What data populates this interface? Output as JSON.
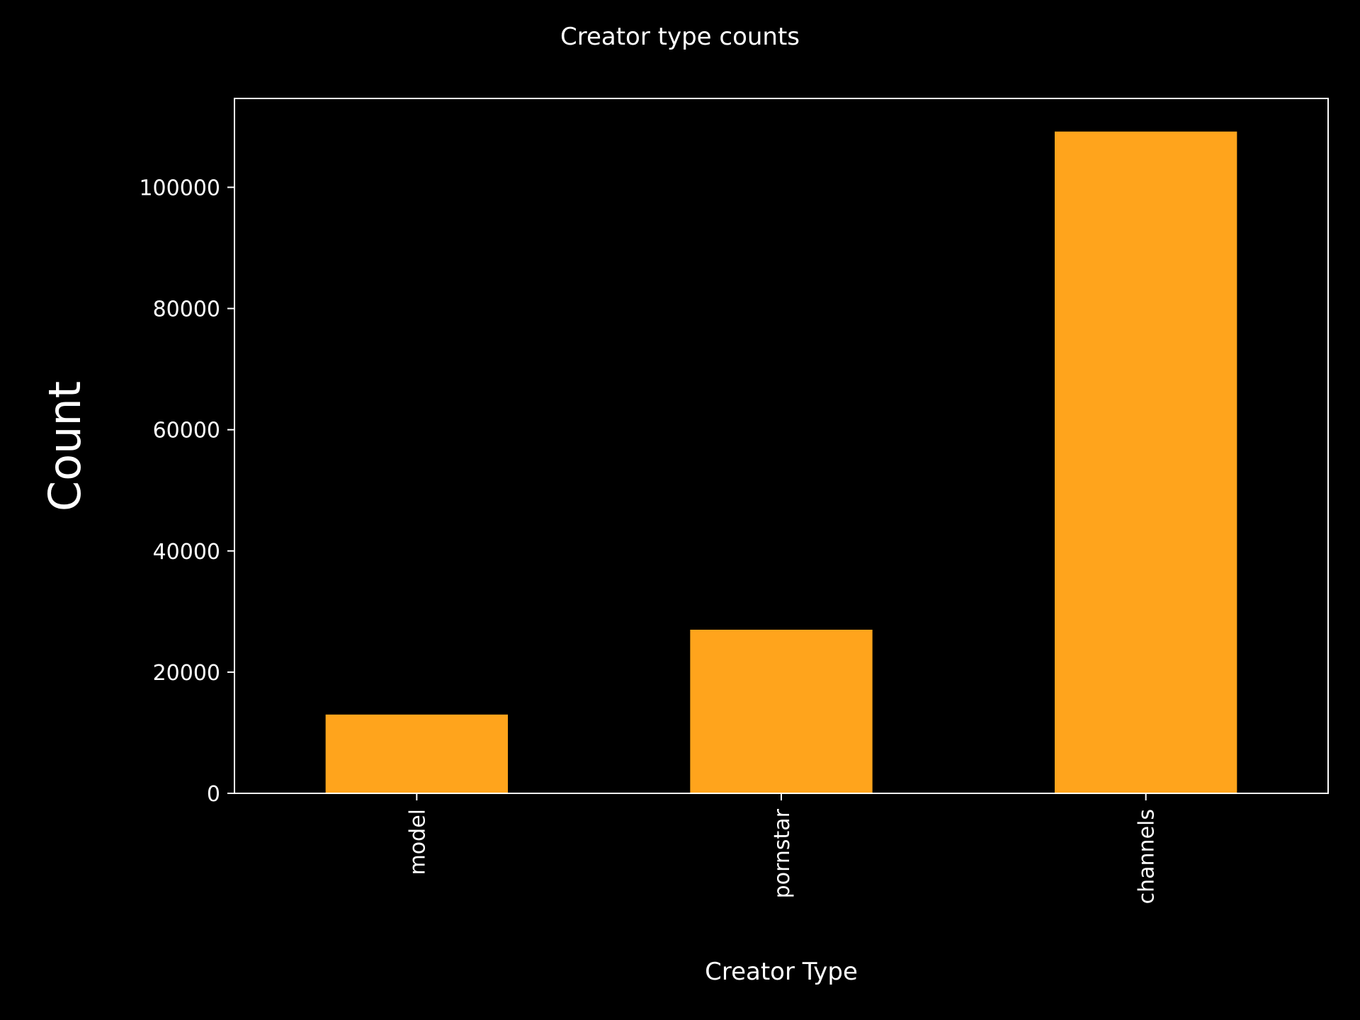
{
  "chart_data": {
    "type": "bar",
    "title": "Creator type counts",
    "xlabel": "Creator Type",
    "ylabel": "Count",
    "categories": [
      "model",
      "pornstar",
      "channels"
    ],
    "values": [
      13000,
      27000,
      109200
    ],
    "ylim": [
      0,
      114660
    ],
    "yticks": [
      0,
      20000,
      40000,
      60000,
      80000,
      100000
    ],
    "ytick_labels": [
      "0",
      "20000",
      "40000",
      "60000",
      "80000",
      "100000"
    ],
    "grid": false,
    "legend": "none"
  },
  "colors": {
    "background": "#000000",
    "bar": "#ffa41c",
    "axis": "#ffffff",
    "text": "#ffffff"
  }
}
